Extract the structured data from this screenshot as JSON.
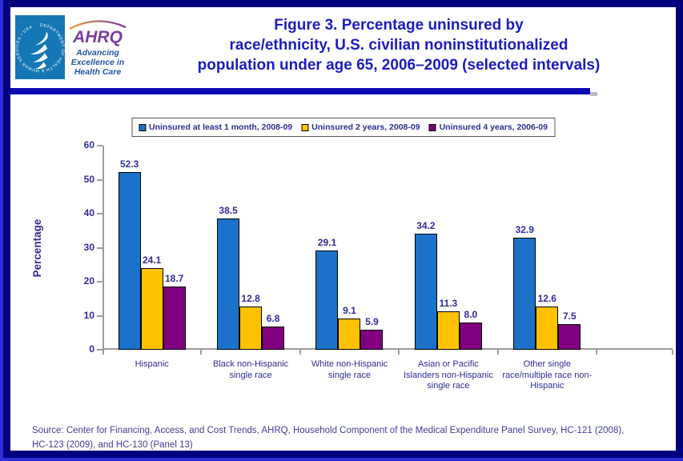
{
  "header": {
    "title_lines": [
      "Figure 3. Percentage uninsured by",
      "race/ethnicity, U.S. civilian noninstitutionalized",
      "population under age 65, 2006–2009 (selected intervals)"
    ],
    "logo": {
      "ahrq_wordmark": "AHRQ",
      "tagline_lines": [
        "Advancing",
        "Excellence in",
        "Health Care"
      ],
      "seal_text": "DEPARTMENT OF HEALTH & HUMAN SERVICES • USA"
    }
  },
  "chart_data": {
    "type": "bar",
    "title": "Percentage uninsured by race/ethnicity, U.S. civilian noninstitutionalized population under age 65, 2006–2009 (selected intervals)",
    "xlabel": "",
    "ylabel": "Percentage",
    "ylim": [
      0,
      60
    ],
    "yticks": [
      0,
      10,
      20,
      30,
      40,
      50,
      60
    ],
    "grid": false,
    "legend_position": "top",
    "categories": [
      "Hispanic",
      "Black non-Hispanic single race",
      "White non-Hispanic single race",
      "Asian or Pacific Islanders non-Hispanic single race",
      "Other single race/multiple race non-Hispanic"
    ],
    "category_lines": [
      [
        "Hispanic"
      ],
      [
        "Black non-Hispanic",
        "single race"
      ],
      [
        "White non-Hispanic",
        "single race"
      ],
      [
        "Asian or Pacific",
        "Islanders non-Hispanic",
        "single race"
      ],
      [
        "Other single",
        "race/multiple race non-",
        "Hispanic"
      ]
    ],
    "series": [
      {
        "name": "Uninsured at least 1 month, 2008-09",
        "color": "#1b72c8",
        "values": [
          52.3,
          38.5,
          29.1,
          34.2,
          32.9
        ],
        "value_labels": [
          "52.3",
          "38.5",
          "29.1",
          "34.2",
          "32.9"
        ]
      },
      {
        "name": "Uninsured 2 years, 2008-09",
        "color": "#ffc200",
        "values": [
          24.1,
          12.8,
          9.1,
          11.3,
          12.6
        ],
        "value_labels": [
          "24.1",
          "12.8",
          "9.1",
          "11.3",
          "12.6"
        ]
      },
      {
        "name": "Uninsured 4 years, 2006-09",
        "color": "#800080",
        "values": [
          18.7,
          6.8,
          5.9,
          8.0,
          7.5
        ],
        "value_labels": [
          "18.7",
          "6.8",
          "5.9",
          "8.0",
          "7.5"
        ]
      }
    ]
  },
  "source_lines": [
    "Source: Center for Financing, Access, and Cost Trends, AHRQ, Household Component of the Medical Expenditure Panel Survey, HC-121 (2008),",
    "HC-123 (2009), and HC-130 (Panel 13)"
  ],
  "colors": {
    "frame_border": "#00007e",
    "frame_accent": "#2d2dd9",
    "divider": "#0b0bb5",
    "title_text": "#1c1cbe",
    "label_text": "#2d2d96",
    "source_text": "#3f3f94",
    "axis": "#9c9c9c",
    "hhs_panel": "#1577b5",
    "ahrq_purple": "#7a3f9d",
    "tagline_blue": "#2356a5"
  }
}
